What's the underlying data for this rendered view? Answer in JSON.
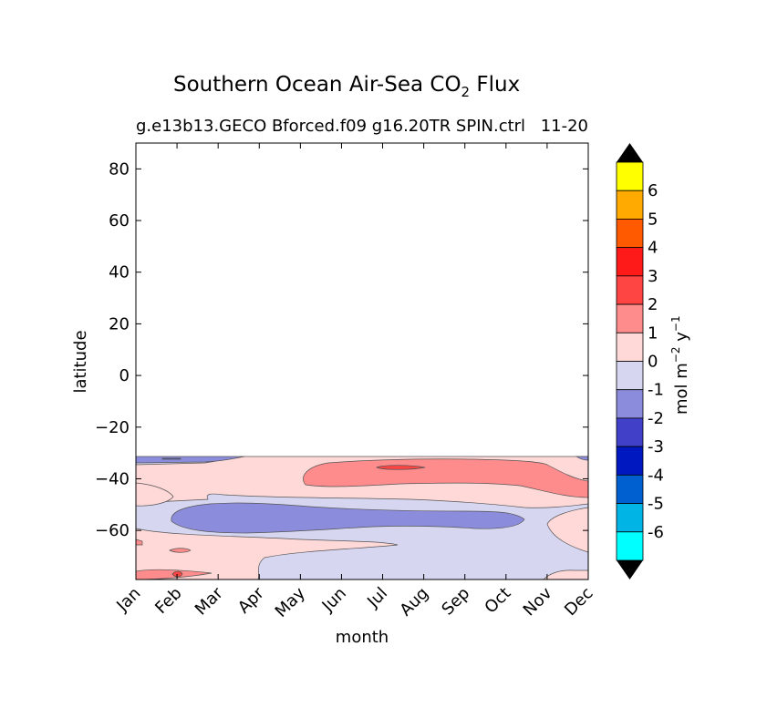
{
  "chart_data": {
    "type": "heatmap",
    "title": "Southern Ocean Air-Sea CO",
    "title_sub": "2",
    "title_tail": " Flux",
    "subtitle": "g.e13b13.GECO Bforced.f09 g16.20TR SPIN.ctrl",
    "subtitle_right": "11-20",
    "xlabel": "month",
    "ylabel": "latitude",
    "categories": [
      "Jan",
      "Feb",
      "Mar",
      "Apr",
      "May",
      "Jun",
      "Jul",
      "Aug",
      "Sep",
      "Oct",
      "Nov",
      "Dec"
    ],
    "xlim": [
      1,
      12
    ],
    "ylim": [
      -79,
      90
    ],
    "yticks": [
      80,
      60,
      40,
      20,
      0,
      -20,
      -40,
      -60
    ],
    "ytick_labels": [
      "80",
      "60",
      "40",
      "20",
      "0",
      "−20",
      "−40",
      "−60"
    ],
    "data_lat_range": [
      -79,
      -32
    ],
    "grid": false,
    "colorbar": {
      "label": "mol m",
      "label_exp1": "−2",
      "label_mid": " y",
      "label_exp2": "−1",
      "tick_labels": [
        "6",
        "5",
        "4",
        "3",
        "2",
        "1",
        "0",
        "-1",
        "-2",
        "-3",
        "-4",
        "-5",
        "-6"
      ],
      "bands_top_to_bottom": [
        "#ffff00",
        "#ffaa00",
        "#ff5a00",
        "#ff1a1a",
        "#ff4444",
        "#ff8c8c",
        "#ffd8d8",
        "#d6d6f0",
        "#8c8cdc",
        "#4040c8",
        "#0018c0",
        "#0060d0",
        "#00b4e6",
        "#00ffff"
      ],
      "extend_color": "#000000"
    },
    "regions": [
      {
        "name": "-1 to 0 background",
        "color": "#d6d6f0"
      },
      {
        "name": "0 to 1 band",
        "color": "#ffd8d8"
      },
      {
        "name": "1 to 2 core",
        "color": "#ff8c8c",
        "months": [
          "Jun",
          "Jul",
          "Aug",
          "Sep",
          "Oct",
          "Nov",
          "Dec"
        ],
        "lat_range": [
          -43,
          -35
        ]
      },
      {
        "name": "2 to 3 spot",
        "color": "#ff4444",
        "months": [
          "Jul",
          "Aug"
        ],
        "lat_range": [
          -37,
          -35
        ]
      },
      {
        "name": "-2 to -1 band",
        "color": "#8c8cdc",
        "months": [
          "Feb",
          "Mar",
          "Apr",
          "May",
          "Jun",
          "Jul",
          "Aug",
          "Sep",
          "Oct"
        ],
        "lat_range": [
          -61,
          -50
        ]
      },
      {
        "name": "-2 to -1 northern strip",
        "color": "#8c8cdc",
        "months": [
          "Jan",
          "Feb",
          "Mar",
          "Apr"
        ],
        "lat_range": [
          -35,
          -32
        ]
      }
    ]
  }
}
